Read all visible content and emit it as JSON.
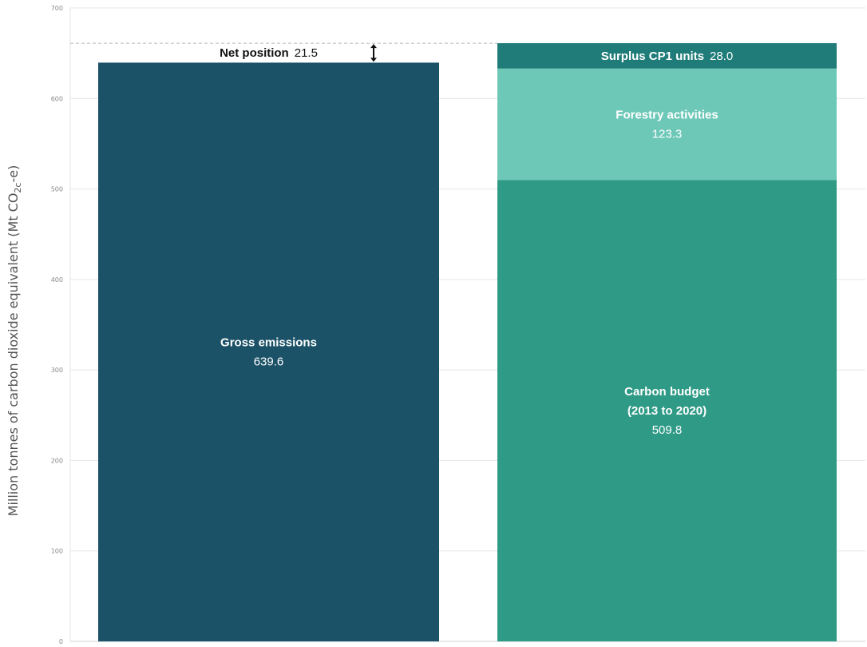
{
  "chart_data": {
    "type": "bar",
    "stacked": true,
    "ylabel_parts": [
      "Million tonnes of carbon dioxide equivalent (Mt CO",
      "2c",
      "-e)"
    ],
    "ylim": [
      0,
      700
    ],
    "yticks": [
      0,
      100,
      200,
      300,
      400,
      500,
      600,
      700
    ],
    "grid": true,
    "bars": [
      {
        "segments": [
          {
            "name": "Gross emissions",
            "value": 639.6,
            "value_label": "639.6",
            "color": "#1b5267"
          }
        ]
      },
      {
        "segments": [
          {
            "name": "Carbon budget (2013 to 2020)",
            "name_lines": [
              "Carbon budget",
              "(2013 to 2020)"
            ],
            "value": 509.8,
            "value_label": "509.8",
            "color": "#2f9a86"
          },
          {
            "name": "Forestry activities",
            "value": 123.3,
            "value_label": "123.3",
            "color": "#6ec8b8"
          },
          {
            "name": "Surplus CP1 units",
            "value": 28.0,
            "value_label": "28.0",
            "color": "#1f7c79"
          }
        ]
      }
    ],
    "annotations": {
      "net_position": {
        "label": "Net position",
        "value": 21.5,
        "value_label": "21.5"
      },
      "reference_line_value": 661.1
    }
  }
}
